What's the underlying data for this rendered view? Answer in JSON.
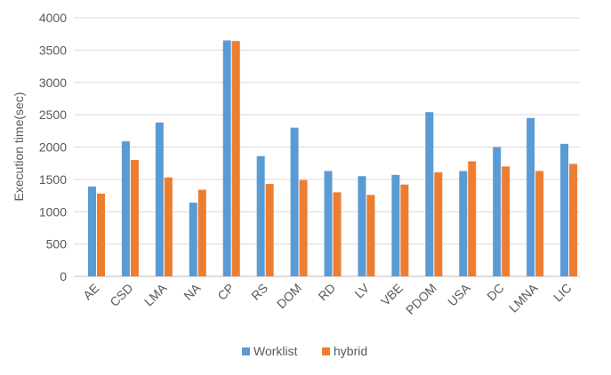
{
  "chart_data": {
    "type": "bar",
    "title": "",
    "xlabel": "",
    "ylabel": "Execution time(sec)",
    "ylim": [
      0,
      4000
    ],
    "yticks": [
      0,
      500,
      1000,
      1500,
      2000,
      2500,
      3000,
      3500,
      4000
    ],
    "grid": true,
    "legend_position": "bottom",
    "categories": [
      "AE",
      "CSD",
      "LMA",
      "NA",
      "CP",
      "RS",
      "DOM",
      "RD",
      "LV",
      "VBE",
      "PDOM",
      "USA",
      "DC",
      "LMNA",
      "LIC"
    ],
    "series": [
      {
        "name": "Worklist",
        "color": "#5B9BD5",
        "values": [
          1390,
          2090,
          2380,
          1140,
          3650,
          1860,
          2300,
          1630,
          1550,
          1570,
          2540,
          1630,
          2000,
          2450,
          2050
        ]
      },
      {
        "name": "hybrid",
        "color": "#ED7D31",
        "values": [
          1280,
          1800,
          1530,
          1340,
          3640,
          1430,
          1490,
          1300,
          1260,
          1420,
          1610,
          1780,
          1700,
          1630,
          1740
        ]
      }
    ]
  }
}
